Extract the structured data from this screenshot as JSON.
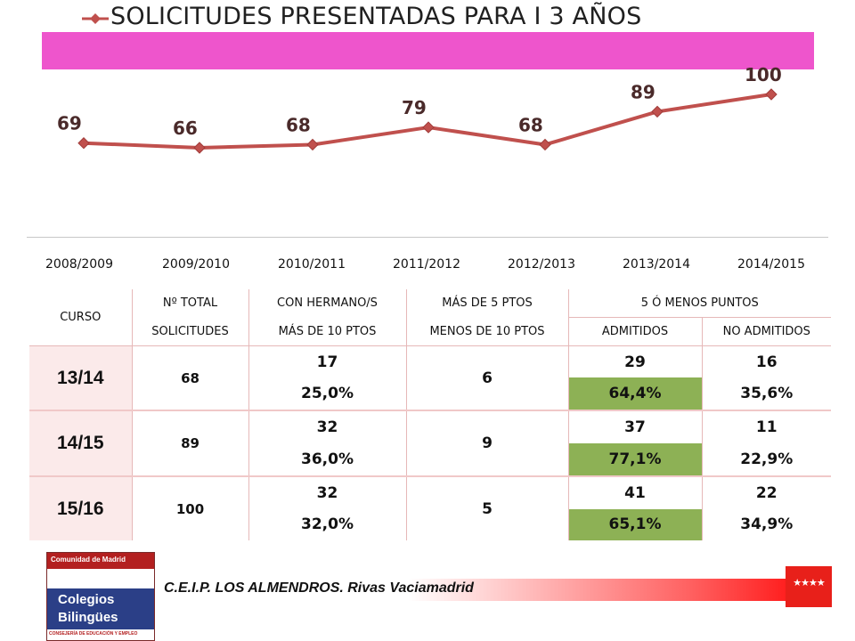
{
  "chart_data": {
    "type": "line",
    "title": "SOLICITUDES PRESENTADAS PARA I 3 AÑOS",
    "categories": [
      "2008/2009",
      "2009/2010",
      "2010/2011",
      "2011/2012",
      "2012/2013",
      "2013/2014",
      "2014/2015"
    ],
    "values": [
      69,
      66,
      68,
      79,
      68,
      89,
      100
    ],
    "data_labels": [
      "69",
      "66",
      "68",
      "79",
      "68",
      "89",
      "100"
    ],
    "line_color": "#c0504d",
    "grid": false,
    "legend": "none"
  },
  "table": {
    "headers": {
      "curso": "CURSO",
      "total_line1": "Nº  TOTAL",
      "total_line2": "SOLICITUDES",
      "hermano_line1": "CON HERMANO/S",
      "hermano_line2": "MÁS DE 10 PTOS",
      "mas5_line1": "MÁS DE 5 PTOS",
      "mas5_line2": "MENOS DE 10 PTOS",
      "menos5": "5 Ó MENOS PUNTOS",
      "admitidos": "ADMITIDOS",
      "no_admitidos": "NO ADMITIDOS"
    },
    "rows": [
      {
        "curso": "13/14",
        "total": "68",
        "hermano": "17",
        "hermano_pct": "25,0%",
        "mas5": "6",
        "admitidos": "29",
        "admitidos_pct": "64,4%",
        "no_admitidos": "16",
        "no_admitidos_pct": "35,6%"
      },
      {
        "curso": "14/15",
        "total": "89",
        "hermano": "32",
        "hermano_pct": "36,0%",
        "mas5": "9",
        "admitidos": "37",
        "admitidos_pct": "77,1%",
        "no_admitidos": "11",
        "no_admitidos_pct": "22,9%"
      },
      {
        "curso": "15/16",
        "total": "100",
        "hermano": "32",
        "hermano_pct": "32,0%",
        "mas5": "5",
        "admitidos": "41",
        "admitidos_pct": "65,1%",
        "no_admitidos": "22",
        "no_admitidos_pct": "34,9%"
      }
    ]
  },
  "footer": {
    "text": "C.E.I.P. LOS ALMENDROS. Rivas Vaciamadrid",
    "flag_stars": "★★★★"
  },
  "logo": {
    "top_text": "Comunidad de Madrid",
    "line1": "Colegios",
    "line2": "Bilingües",
    "bottom_text": "CONSEJERÍA DE EDUCACIÓN Y EMPLEO"
  },
  "colors": {
    "title_bar": "#ee55cc",
    "admitidos_pct_bg": "#8db155",
    "no_admitidos_pct_text": "#e02020"
  }
}
